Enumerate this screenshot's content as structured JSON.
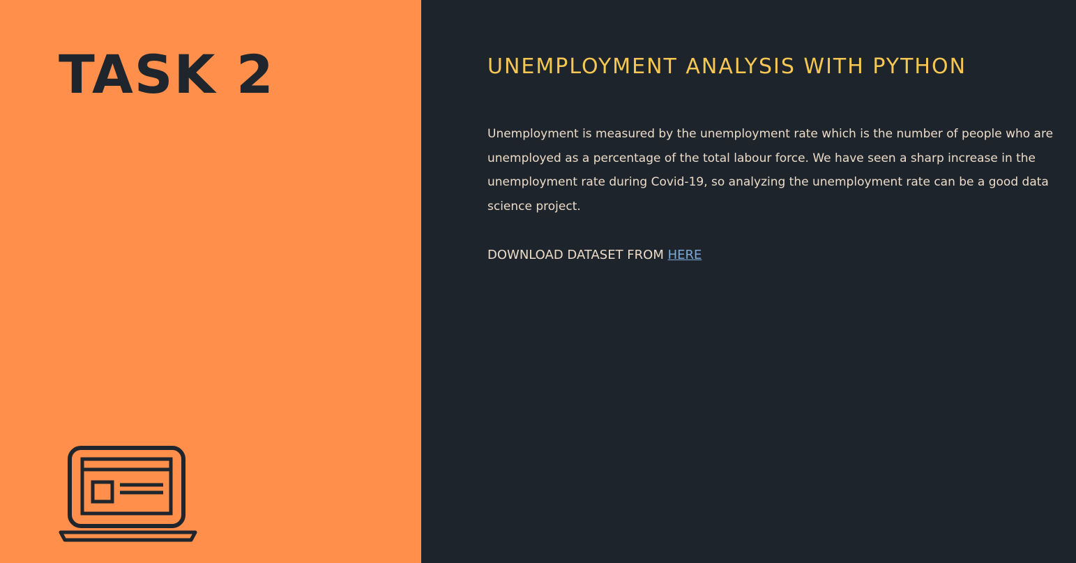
{
  "left": {
    "title": "TASK 2",
    "icon": "laptop-icon"
  },
  "right": {
    "heading": "UNEMPLOYMENT ANALYSIS WITH PYTHON",
    "description": "Unemployment is measured by the unemployment rate which is the number of people who are unemployed as a percentage of the total labour force. We have seen a sharp increase in the unemployment rate during Covid-19, so analyzing the unemployment rate can be a good data science project.",
    "download_prefix": "DOWNLOAD DATASET FROM ",
    "download_link_label": "HERE"
  },
  "colors": {
    "left_background": "#ff8f4a",
    "right_background": "#1e242b",
    "heading": "#f7c754",
    "body_text": "#ecdcc9",
    "link": "#7ea9d8",
    "dark_ink": "#1e252c"
  }
}
